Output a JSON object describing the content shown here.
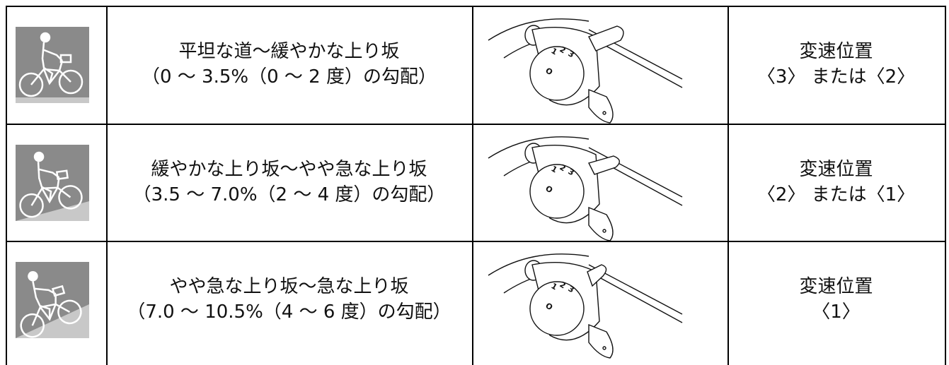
{
  "table": {
    "rows": [
      {
        "terrain": [
          "平坦な道～緩やかな上り坂",
          "（0 ～ 3.5%（0 ～ 2 度）の勾配）"
        ],
        "dial": [
          "1",
          "2",
          "3",
          "O"
        ],
        "gear": [
          "変速位置",
          "〈3〉 または〈2〉"
        ]
      },
      {
        "terrain": [
          "緩やかな上り坂～やや急な上り坂",
          "（3.5 ～ 7.0%（2 ～ 4 度）の勾配）"
        ],
        "dial": [
          "1",
          "2",
          "3",
          "O"
        ],
        "gear": [
          "変速位置",
          "〈2〉 または〈1〉"
        ]
      },
      {
        "terrain": [
          "やや急な上り坂～急な上り坂",
          "（7.0 ～ 10.5%（4 ～ 6 度）の勾配）"
        ],
        "dial": [
          "1",
          "2",
          "3",
          "O"
        ],
        "gear": [
          "変速位置",
          "〈1〉"
        ]
      }
    ]
  }
}
